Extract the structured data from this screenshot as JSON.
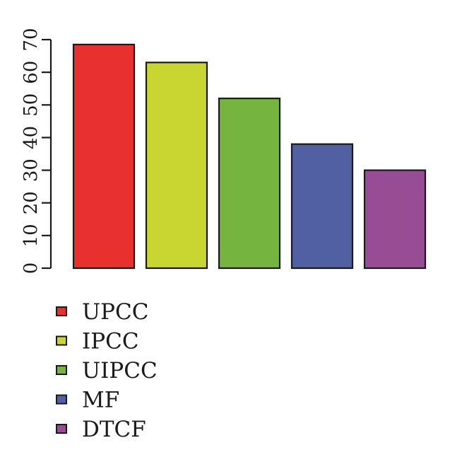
{
  "chart_data": {
    "type": "bar",
    "categories": [
      "UPCC",
      "IPCC",
      "UIPCC",
      "MF",
      "DTCF"
    ],
    "values": [
      68.5,
      63,
      52,
      38,
      30
    ],
    "colors": [
      "#e8312e",
      "#c9d631",
      "#74b43f",
      "#5160a3",
      "#974d93"
    ],
    "ylim": [
      0,
      70
    ],
    "yticks": [
      0,
      10,
      20,
      30,
      40,
      50,
      60,
      70
    ],
    "grid": false,
    "legend": {
      "position": "bottom-left",
      "entries": [
        "UPCC",
        "IPCC",
        "UIPCC",
        "MF",
        "DTCF"
      ]
    },
    "title": "",
    "xlabel": "",
    "ylabel": ""
  }
}
